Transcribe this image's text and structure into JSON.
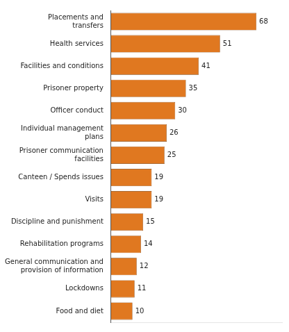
{
  "chart_data": {
    "type": "bar",
    "orientation": "horizontal",
    "categories": [
      "Food and diet",
      "Lockdowns",
      "General communication and\nprovision of information",
      "Rehabilitation programs",
      "Discipline and punishment",
      "Visits",
      "Canteen / Spends issues",
      "Prisoner communication\nfacilities",
      "Individual management\nplans",
      "Officer conduct",
      "Prisoner property",
      "Facilities and conditions",
      "Health services",
      "Placements and\ntransfers"
    ],
    "values": [
      10,
      11,
      12,
      14,
      15,
      19,
      19,
      25,
      26,
      30,
      35,
      41,
      51,
      68
    ],
    "color": "#E07820",
    "xlim": [
      0,
      80
    ],
    "grid": false,
    "data_labels": true,
    "tick_labels": "y"
  }
}
